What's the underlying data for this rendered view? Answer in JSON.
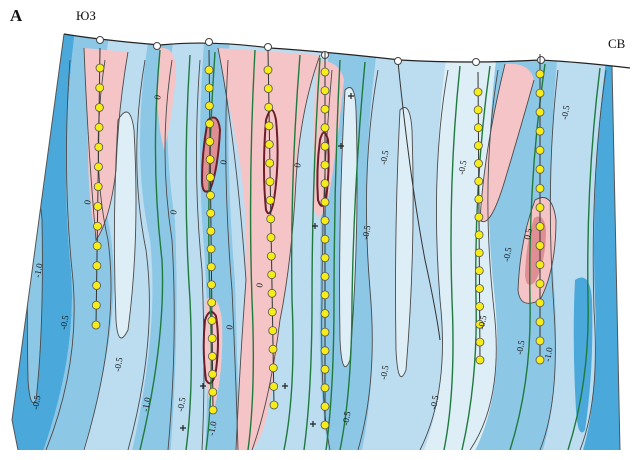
{
  "figure": {
    "panel_letter": "A",
    "direction_left": "ЮЗ",
    "direction_right": "СВ"
  },
  "colors": {
    "background": "#ffffff",
    "band_very_light": "#ddeef7",
    "band_light": "#bcdcf0",
    "band_medium": "#8dc7e6",
    "band_dark": "#4aa8da",
    "anomaly_positive": "#f4c4c6",
    "anomaly_core": "#df8f93",
    "contour_line": "#4a4a4a",
    "fault_line": "#1f7a3d",
    "borehole_marker": "#f5ec1a",
    "marker_stroke": "#555555"
  },
  "contour_labels": [
    {
      "id": "c1",
      "text": "0"
    },
    {
      "id": "c2",
      "text": "0"
    },
    {
      "id": "c3",
      "text": "0"
    },
    {
      "id": "c4",
      "text": "0"
    },
    {
      "id": "c5",
      "text": "0"
    },
    {
      "id": "c6",
      "text": "0"
    },
    {
      "id": "c7",
      "text": "0"
    },
    {
      "id": "c8",
      "text": "-0.5"
    },
    {
      "id": "c9",
      "text": "-0.5"
    },
    {
      "id": "c10",
      "text": "-0.5"
    },
    {
      "id": "c11",
      "text": "-0.5"
    },
    {
      "id": "c12",
      "text": "-0.5"
    },
    {
      "id": "c13",
      "text": "-0.5"
    },
    {
      "id": "c14",
      "text": "-0.5"
    },
    {
      "id": "c15",
      "text": "-0.5"
    },
    {
      "id": "c16",
      "text": "-0.5"
    },
    {
      "id": "c17",
      "text": "-0.5"
    },
    {
      "id": "c18",
      "text": "-0.5"
    },
    {
      "id": "c19",
      "text": "-0.5"
    },
    {
      "id": "c20",
      "text": "-0.5"
    },
    {
      "id": "c21",
      "text": "-1.0"
    },
    {
      "id": "c22",
      "text": "-1.0"
    },
    {
      "id": "c23",
      "text": "-1.0"
    },
    {
      "id": "c24",
      "text": "-1.0"
    },
    {
      "id": "c25",
      "text": "-0.5"
    },
    {
      "id": "c26",
      "text": "0.5"
    }
  ]
}
